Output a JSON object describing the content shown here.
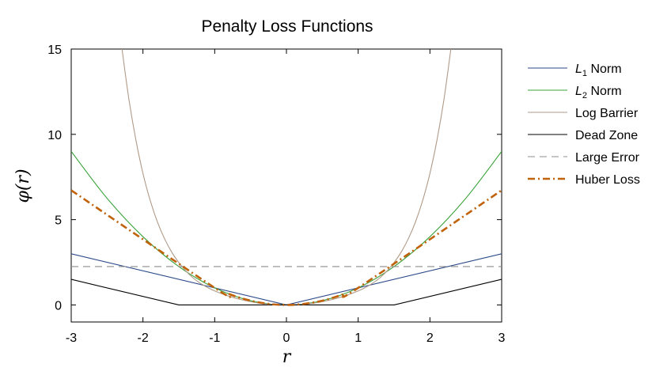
{
  "chart_data": {
    "type": "line",
    "title": "Penalty Loss Functions",
    "xlabel": "r",
    "ylabel": "φ(r)",
    "xlim": [
      -3,
      3
    ],
    "ylim": [
      -1,
      15
    ],
    "xticks": [
      -3,
      -2,
      -1,
      0,
      1,
      2,
      3
    ],
    "yticks": [
      0,
      5,
      10,
      15
    ],
    "grid": false,
    "legend_position": "right",
    "series": [
      {
        "name": "L1 Norm",
        "legend_sub": "1",
        "color": "#2b4a8a",
        "style": "solid",
        "x": [
          -3,
          0,
          3
        ],
        "y": [
          3,
          0,
          3
        ]
      },
      {
        "name": "L2 Norm",
        "legend_sub": "2",
        "color": "#3aa13a",
        "style": "solid",
        "x": [
          -3,
          -2.5,
          -2,
          -1.5,
          -1,
          -0.5,
          0,
          0.5,
          1,
          1.5,
          2,
          2.5,
          3
        ],
        "y": [
          9,
          6.25,
          4,
          2.25,
          1,
          0.25,
          0,
          0.25,
          1,
          2.25,
          4,
          6.25,
          9
        ]
      },
      {
        "name": "Log Barrier",
        "color": "#b09a88",
        "style": "solid",
        "x": [
          -2.3,
          -2.2,
          -2.1,
          -2.0,
          -1.9,
          -1.8,
          -1.7,
          -1.6,
          -1.5,
          -1.4,
          -1.3,
          -1.2,
          -1.1,
          -1.0,
          -0.8,
          -0.6,
          -0.4,
          -0.2,
          0,
          0.2,
          0.4,
          0.6,
          0.8,
          1.0,
          1.1,
          1.2,
          1.3,
          1.4,
          1.5,
          1.6,
          1.7,
          1.8,
          1.9,
          2.0,
          2.1,
          2.2,
          2.3
        ],
        "y": [
          15.26,
          12.17,
          9.7,
          7.71,
          6.14,
          4.88,
          3.89,
          3.1,
          2.48,
          1.98,
          1.58,
          1.27,
          1.02,
          0.82,
          0.51,
          0.28,
          0.12,
          0.03,
          0,
          0.03,
          0.12,
          0.28,
          0.51,
          0.82,
          1.02,
          1.27,
          1.58,
          1.98,
          2.48,
          3.1,
          3.89,
          4.88,
          6.14,
          7.71,
          9.7,
          12.17,
          15.26
        ]
      },
      {
        "name": "Dead Zone",
        "color": "#000000",
        "style": "solid",
        "x": [
          -3,
          -1.5,
          1.5,
          3
        ],
        "y": [
          1.5,
          0,
          0,
          1.5
        ]
      },
      {
        "name": "Large Error",
        "color": "#8c8c8c",
        "style": "dashed",
        "x": [
          -3,
          3
        ],
        "y": [
          2.25,
          2.25
        ]
      },
      {
        "name": "Huber Loss",
        "color": "#c0620a",
        "style": "dashdot",
        "x": [
          -3,
          -1,
          -0.8,
          -0.6,
          -0.4,
          -0.2,
          0,
          0.2,
          0.4,
          0.6,
          0.8,
          1,
          3
        ],
        "y": [
          6.72,
          1,
          0.64,
          0.36,
          0.16,
          0.04,
          0,
          0.04,
          0.16,
          0.36,
          0.64,
          1,
          6.72
        ]
      }
    ]
  }
}
